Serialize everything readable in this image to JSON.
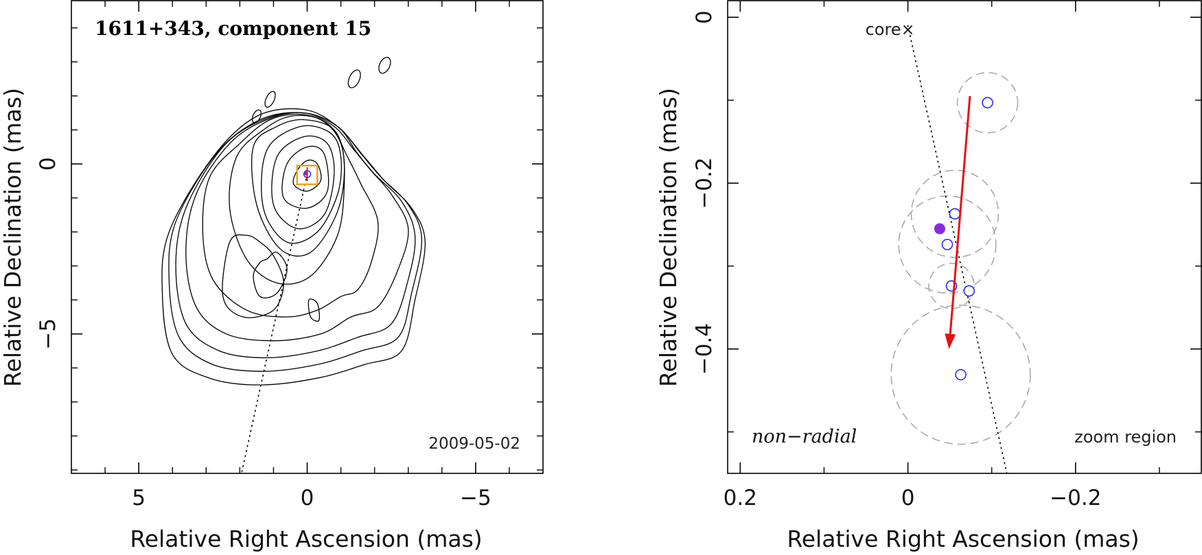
{
  "chart_data": [
    {
      "type": "contour",
      "title": "1611+343, component 15",
      "date": "2009-05-02",
      "xlabel": "Relative Right Ascension (mas)",
      "ylabel": "Relative Declination (mas)",
      "xlim": [
        7,
        -7
      ],
      "ylim": [
        -9.1,
        4.8
      ],
      "xticks": [
        {
          "value": 5,
          "label": "5"
        },
        {
          "value": 0,
          "label": "0"
        },
        {
          "value": -5,
          "label": "−5"
        }
      ],
      "yticks": [
        {
          "value": 0,
          "label": "0"
        },
        {
          "value": -5,
          "label": "−5"
        }
      ],
      "contour_levels": [
        {
          "ra": [
            0.3,
            0.4,
            0.0,
            -0.4,
            -0.3,
            0.0
          ],
          "dec": [
            -0.2,
            -0.6,
            -0.8,
            -0.5,
            0.0,
            0.1
          ]
        },
        {
          "ra": [
            0.6,
            0.7,
            0.0,
            -0.6,
            -0.5,
            0.0
          ],
          "dec": [
            0.0,
            -1.0,
            -1.3,
            -0.8,
            0.3,
            0.5
          ]
        },
        {
          "ra": [
            0.9,
            1.0,
            0.3,
            -0.5,
            -0.8,
            -0.6,
            0.1
          ],
          "dec": [
            0.2,
            -1.2,
            -1.9,
            -1.5,
            -0.3,
            0.6,
            0.8
          ]
        },
        {
          "ra": [
            1.2,
            1.3,
            0.6,
            -0.3,
            -0.9,
            -1.0,
            -0.7,
            0.2
          ],
          "dec": [
            0.4,
            -1.3,
            -2.3,
            -2.0,
            -0.9,
            0.2,
            0.9,
            1.1
          ]
        },
        {
          "ra": [
            1.6,
            1.5,
            0.8,
            -0.1,
            -0.9,
            -1.1,
            -0.8,
            0.1,
            0.9
          ],
          "dec": [
            0.5,
            -1.2,
            -2.5,
            -2.6,
            -1.4,
            0.0,
            1.0,
            1.3,
            1.1
          ]
        },
        {
          "ra": [
            2.1,
            2.3,
            1.8,
            0.9,
            -0.1,
            -0.9,
            -1.1,
            -1.0,
            -0.4,
            0.5,
            1.3
          ],
          "dec": [
            0.2,
            -1.3,
            -2.8,
            -3.5,
            -3.3,
            -2.1,
            -0.6,
            0.6,
            1.3,
            1.4,
            1.0
          ]
        },
        {
          "ra": [
            2.9,
            3.1,
            2.8,
            1.8,
            0.6,
            -0.3,
            -1.0,
            -1.5,
            -1.9,
            -2.1,
            -1.6,
            -1.2,
            -0.7,
            0.1,
            1.1,
            2.0
          ],
          "dec": [
            -0.4,
            -2.0,
            -3.4,
            -4.3,
            -4.5,
            -4.3,
            -3.9,
            -3.7,
            -2.9,
            -1.7,
            -0.6,
            0.2,
            1.1,
            1.45,
            1.3,
            0.6
          ]
        },
        {
          "ra": [
            3.3,
            3.6,
            3.3,
            2.4,
            1.0,
            -0.4,
            -1.3,
            -2.1,
            -2.7,
            -3.0,
            -2.5,
            -1.9,
            -1.4,
            -0.8,
            0.1,
            1.2,
            2.3
          ],
          "dec": [
            -0.9,
            -2.6,
            -4.2,
            -5.0,
            -5.2,
            -5.0,
            -4.5,
            -4.2,
            -3.1,
            -1.9,
            -0.9,
            -0.2,
            0.4,
            1.1,
            1.5,
            1.3,
            0.6
          ]
        },
        {
          "ra": [
            3.6,
            3.9,
            3.6,
            2.6,
            1.2,
            -0.3,
            -1.5,
            -2.5,
            -3.0,
            -3.2,
            -2.8,
            -2.0,
            -1.5,
            -0.9,
            0.1,
            1.3,
            2.5
          ],
          "dec": [
            -1.3,
            -3.0,
            -4.7,
            -5.5,
            -5.7,
            -5.5,
            -5.1,
            -4.7,
            -3.4,
            -2.1,
            -1.1,
            -0.3,
            0.3,
            1.1,
            1.5,
            1.3,
            0.5
          ]
        },
        {
          "ra": [
            3.9,
            4.1,
            3.8,
            2.8,
            1.3,
            -0.3,
            -1.6,
            -2.7,
            -3.1,
            -3.4,
            -3.0,
            -2.2,
            -1.6,
            -0.9,
            0.1,
            1.4,
            2.7
          ],
          "dec": [
            -1.7,
            -3.4,
            -5.1,
            -5.9,
            -6.1,
            -5.9,
            -5.5,
            -5.1,
            -3.8,
            -2.2,
            -1.2,
            -0.4,
            0.3,
            1.1,
            1.5,
            1.3,
            0.3
          ]
        },
        {
          "ra": [
            4.1,
            4.3,
            4.0,
            2.9,
            1.4,
            -0.3,
            -1.7,
            -2.8,
            -3.2,
            -3.5,
            -3.1,
            -2.3,
            -1.7,
            -0.9,
            0.1,
            1.5,
            2.8
          ],
          "dec": [
            -2.0,
            -3.8,
            -5.6,
            -6.3,
            -6.5,
            -6.3,
            -5.9,
            -5.5,
            -4.0,
            -2.3,
            -1.3,
            -0.5,
            0.2,
            1.1,
            1.6,
            1.4,
            0.2
          ]
        },
        {
          "ra": [
            1.2,
            0.9,
            0.6,
            0.9,
            1.4,
            1.6,
            1.4
          ],
          "dec": [
            -2.8,
            -2.6,
            -3.1,
            -3.8,
            -3.9,
            -3.3,
            -2.9
          ]
        },
        {
          "ra": [
            2.3,
            1.8,
            1.4,
            1.0,
            0.7,
            1.0,
            1.9,
            2.5
          ],
          "dec": [
            -2.3,
            -2.1,
            -2.3,
            -2.7,
            -3.5,
            -4.3,
            -4.5,
            -3.9
          ]
        },
        {
          "ra": [
            -0.05,
            -0.3,
            -0.35,
            -0.1
          ],
          "dec": [
            -4.0,
            -4.1,
            -4.6,
            -4.5
          ]
        }
      ],
      "islands": [
        {
          "ra": -1.4,
          "dec": 2.5,
          "rx": 0.15,
          "ry": 0.28
        },
        {
          "ra": -2.3,
          "dec": 2.9,
          "rx": 0.15,
          "ry": 0.25
        },
        {
          "ra": 1.1,
          "dec": 1.9,
          "rx": 0.12,
          "ry": 0.25
        },
        {
          "ra": 1.5,
          "dec": 1.4,
          "rx": 0.11,
          "ry": 0.2
        }
      ],
      "jet_line": {
        "ra": [
          0.0,
          1.95
        ],
        "dec": [
          -0.3,
          -9.1
        ]
      },
      "zoom_box": {
        "ra": [
          0.3,
          -0.3
        ],
        "dec": [
          -0.05,
          -0.6
        ]
      },
      "core_marker": {
        "ra": 0.0,
        "dec": -0.3
      }
    },
    {
      "type": "scatter",
      "xlabel": "Relative Right Ascension (mas)",
      "ylabel": "Relative Declination (mas)",
      "xlim": [
        0.215,
        -0.35
      ],
      "ylim": [
        -0.55,
        0.02
      ],
      "xticks": [
        {
          "value": 0.2,
          "label": "0.2"
        },
        {
          "value": 0,
          "label": "0"
        },
        {
          "value": -0.2,
          "label": "−0.2"
        }
      ],
      "yticks": [
        {
          "value": 0,
          "label": "0"
        },
        {
          "value": -0.2,
          "label": "−0.2"
        },
        {
          "value": -0.4,
          "label": "−0.4"
        }
      ],
      "core_label": "core",
      "core": {
        "ra": -0.0,
        "dec": 0.0
      },
      "direction_line": {
        "ra": [
          0.0,
          -0.118
        ],
        "dec": [
          0.0,
          -0.55
        ]
      },
      "positions": [
        {
          "ra": -0.095,
          "dec": -0.103
        },
        {
          "ra": -0.056,
          "dec": -0.237
        },
        {
          "ra": -0.047,
          "dec": -0.274
        },
        {
          "ra": -0.052,
          "dec": -0.324
        },
        {
          "ra": -0.073,
          "dec": -0.33
        },
        {
          "ra": -0.063,
          "dec": -0.431
        }
      ],
      "highlight": {
        "ra": -0.038,
        "dec": -0.255
      },
      "uncertainty_circles": [
        {
          "ra": -0.095,
          "dec": -0.103,
          "r": 0.036
        },
        {
          "ra": -0.056,
          "dec": -0.237,
          "r": 0.052
        },
        {
          "ra": -0.047,
          "dec": -0.274,
          "r": 0.058
        },
        {
          "ra": -0.052,
          "dec": -0.324,
          "r": 0.027
        },
        {
          "ra": -0.063,
          "dec": -0.431,
          "r": 0.083
        }
      ],
      "velocity_vector": {
        "ra": [
          -0.074,
          -0.049
        ],
        "dec": [
          -0.095,
          -0.4
        ]
      },
      "labels": {
        "motion": "non−radial",
        "zoom": "zoom region"
      },
      "colors": {
        "points": "#2b2bff",
        "highlight": "#8a2be2",
        "arrow": "#e81010",
        "circles": "#aaaaaa"
      }
    }
  ]
}
